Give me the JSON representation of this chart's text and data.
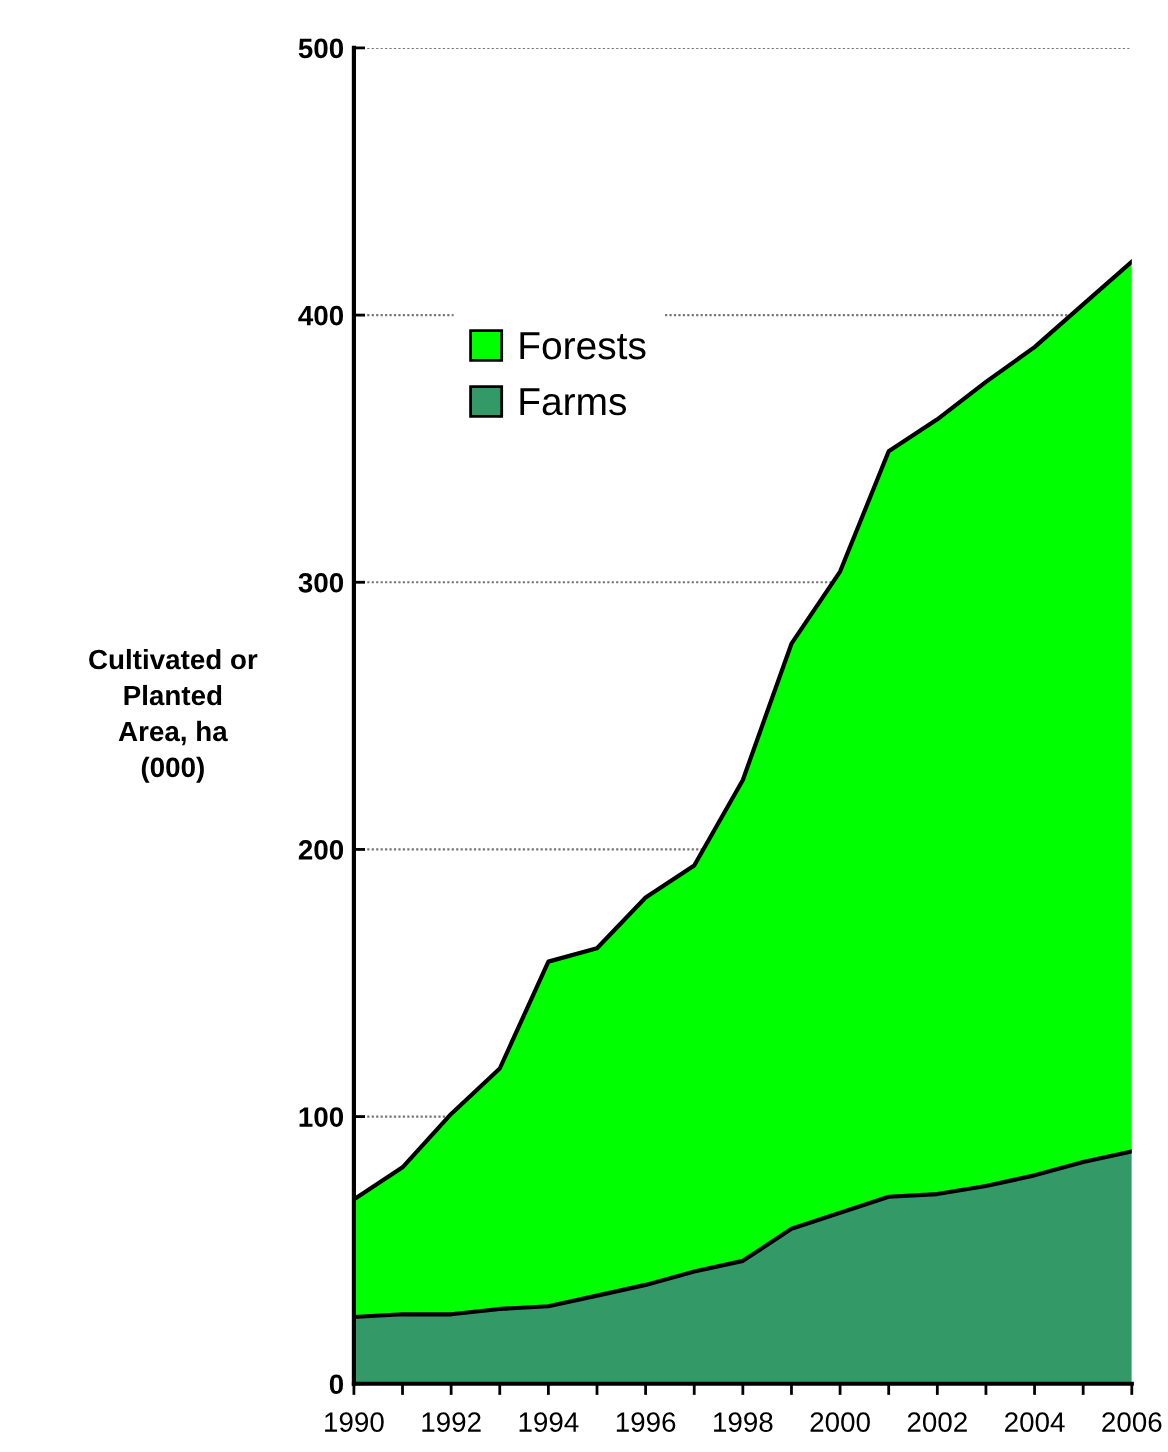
{
  "chart_data": {
    "type": "area",
    "stacked": true,
    "ylabel": "Cultivated or\nPlanted\nArea, ha\n(000)",
    "x": [
      1990,
      1991,
      1992,
      1993,
      1994,
      1995,
      1996,
      1997,
      1998,
      1999,
      2000,
      2001,
      2002,
      2003,
      2004,
      2005,
      2006
    ],
    "series": [
      {
        "name": "Farms",
        "color": "#339966",
        "values": [
          25,
          26,
          26,
          28,
          29,
          33,
          37,
          42,
          46,
          58,
          64,
          70,
          71,
          74,
          78,
          83,
          87
        ]
      },
      {
        "name": "Forests",
        "color": "#00ff00",
        "values": [
          44,
          55,
          75,
          90,
          129,
          130,
          145,
          152,
          180,
          219,
          240,
          279,
          290,
          301,
          310,
          321,
          333
        ]
      }
    ],
    "xlim": [
      1990,
      2006
    ],
    "xticks": [
      1990,
      {
        "value": 1991,
        "label": null
      },
      1992,
      {
        "value": 1993,
        "label": null
      },
      1994,
      {
        "value": 1995,
        "label": null
      },
      1996,
      {
        "value": 1997,
        "label": null
      },
      1998,
      {
        "value": 1999,
        "label": null
      },
      2000,
      {
        "value": 2001,
        "label": null
      },
      2002,
      {
        "value": 2003,
        "label": null
      },
      2004,
      {
        "value": 2005,
        "label": null
      },
      2006
    ],
    "ylim": [
      0,
      500
    ],
    "yticks": [
      0,
      100,
      200,
      300,
      400,
      500
    ],
    "grid": "y",
    "legend": "top left"
  }
}
